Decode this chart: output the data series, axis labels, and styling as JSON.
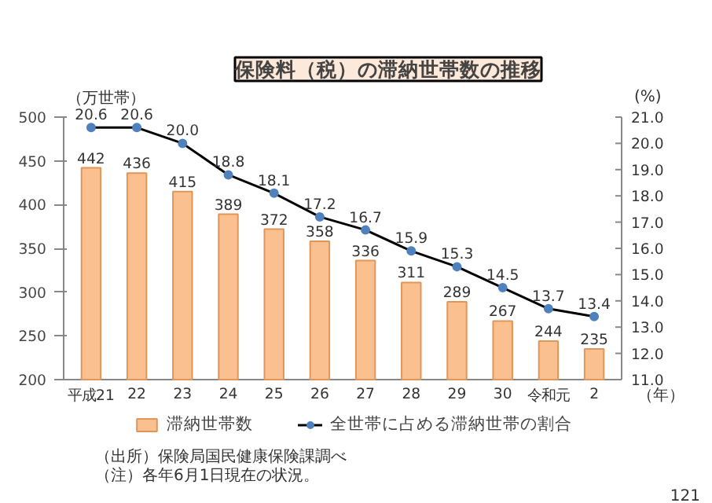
{
  "chart_data": {
    "type": "bar",
    "title": "保険料（税）の滞納世帯数の推移",
    "categories": [
      "平成21",
      "22",
      "23",
      "24",
      "25",
      "26",
      "27",
      "28",
      "29",
      "30",
      "令和元",
      "2"
    ],
    "series": [
      {
        "name": "滞納世帯数",
        "color": "#fac090",
        "values": [
          442,
          436,
          415,
          389,
          372,
          358,
          336,
          311,
          289,
          267,
          244,
          235
        ]
      },
      {
        "name": "全世帯に占める滞納世帯の割合",
        "type": "line",
        "axis": "y2",
        "color": "#000000",
        "marker": "circle",
        "values": [
          20.6,
          20.6,
          20.0,
          18.8,
          18.1,
          17.2,
          16.7,
          15.9,
          15.3,
          14.5,
          13.7,
          13.4
        ],
        "value_labels": [
          "20.6",
          "20.6",
          "20.0",
          "18.8",
          "18.1",
          "17.2",
          "16.7",
          "15.9",
          "15.3",
          "14.5",
          "13.7",
          "13.4"
        ]
      }
    ],
    "ylabel": "（万世帯）",
    "y2label": "(%)",
    "xlabel": "（年）",
    "ylim": [
      200,
      500
    ],
    "yticks": [
      200,
      250,
      300,
      350,
      400,
      450,
      500
    ],
    "y2lim": [
      11.0,
      21.0
    ],
    "y2ticks": [
      {
        "value": 11,
        "label": "11.0"
      },
      {
        "value": 12,
        "label": "12.0"
      },
      {
        "value": 13,
        "label": "13.0"
      },
      {
        "value": 14,
        "label": "14.0"
      },
      {
        "value": 15,
        "label": "15.0"
      },
      {
        "value": 16,
        "label": "16.0"
      },
      {
        "value": 17,
        "label": "17.0"
      },
      {
        "value": 18,
        "label": "18.0"
      },
      {
        "value": 19,
        "label": "19.0"
      },
      {
        "value": 20,
        "label": "20.0"
      },
      {
        "value": 21,
        "label": "21.0"
      }
    ],
    "data_labels": true,
    "grid": false,
    "legend": "bottom",
    "annotations": [
      "（出所）保険局国民健康保険課調べ",
      "（注）各年6月1日現在の状況。",
      "121"
    ]
  }
}
